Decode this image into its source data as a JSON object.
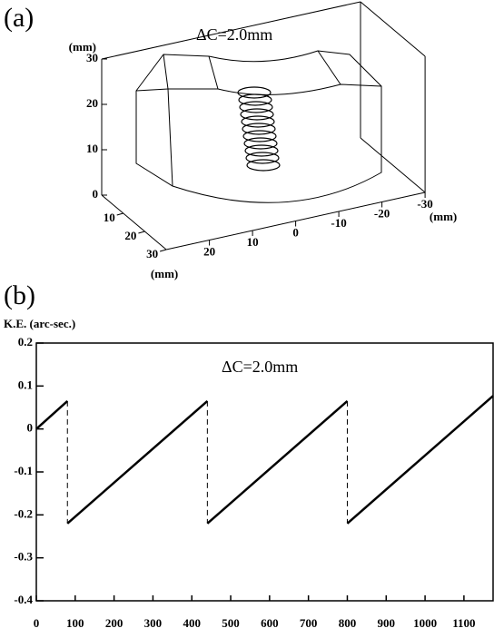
{
  "chart_data": [
    {
      "type": "surface3d",
      "panel_label": "(a)",
      "annotation": "ΔC=2.0mm",
      "xlabel": "(mm)",
      "ylabel": "(mm)",
      "zlabel": "(mm)",
      "xlim": [
        0,
        30
      ],
      "xticks": [
        10,
        20,
        30
      ],
      "ylim": [
        -30,
        30
      ],
      "yticks": [
        20,
        10,
        0,
        -10,
        -20,
        -30
      ],
      "zlim": [
        0,
        30
      ],
      "zticks": [
        0,
        10,
        20,
        30
      ]
    },
    {
      "type": "line",
      "panel_label": "(b)",
      "ylabel": "K.E. (arc-sec.)",
      "annotation": "ΔC=2.0mm",
      "xlim": [
        0,
        1175
      ],
      "xticks": [
        0,
        100,
        200,
        300,
        400,
        500,
        600,
        700,
        800,
        900,
        1000,
        1100
      ],
      "ylim": [
        -0.4,
        0.2
      ],
      "yticks": [
        -0.4,
        -0.3,
        -0.2,
        -0.1,
        0,
        0.1,
        0.2
      ],
      "series": [
        {
          "color": "#000000",
          "dashed": false,
          "x": [
            0,
            80,
            80,
            80,
            440,
            440,
            440,
            800,
            800,
            800,
            1175
          ],
          "values": [
            0,
            0.065,
            null,
            -0.22,
            0.065,
            null,
            -0.22,
            0.065,
            null,
            -0.22,
            0.077
          ]
        },
        {
          "color": "#000000",
          "dashed": true,
          "x": [
            80,
            80,
            80,
            440,
            440,
            440,
            800,
            800
          ],
          "values": [
            0.065,
            -0.22,
            null,
            0.065,
            -0.22,
            null,
            0.065,
            -0.22
          ]
        }
      ]
    }
  ]
}
